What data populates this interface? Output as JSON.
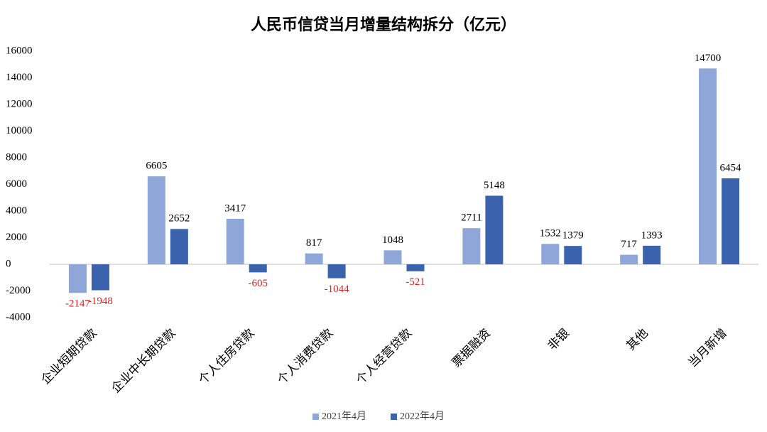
{
  "chart_data": {
    "type": "bar",
    "title": "人民币信贷当月增量结构拆分（亿元）",
    "categories": [
      "企业短期贷款",
      "企业中长期贷款",
      "个人住房贷款",
      "个人消费贷款",
      "个人经营贷款",
      "票据融资",
      "非银",
      "其他",
      "当月新增"
    ],
    "series": [
      {
        "name": "2021年4月",
        "color": "#8fa6d8",
        "values": [
          -2147,
          6605,
          3417,
          817,
          1048,
          2711,
          1532,
          717,
          14700
        ]
      },
      {
        "name": "2022年4月",
        "color": "#3a62ad",
        "values": [
          -1948,
          2652,
          -605,
          -1044,
          -521,
          5148,
          1379,
          1393,
          6454
        ]
      }
    ],
    "ylim": [
      -4000,
      16000
    ],
    "yticks": [
      -4000,
      -2000,
      0,
      2000,
      4000,
      6000,
      8000,
      10000,
      12000,
      14000,
      16000
    ],
    "negative_label_color": "#e02020",
    "legend": "bottom"
  }
}
